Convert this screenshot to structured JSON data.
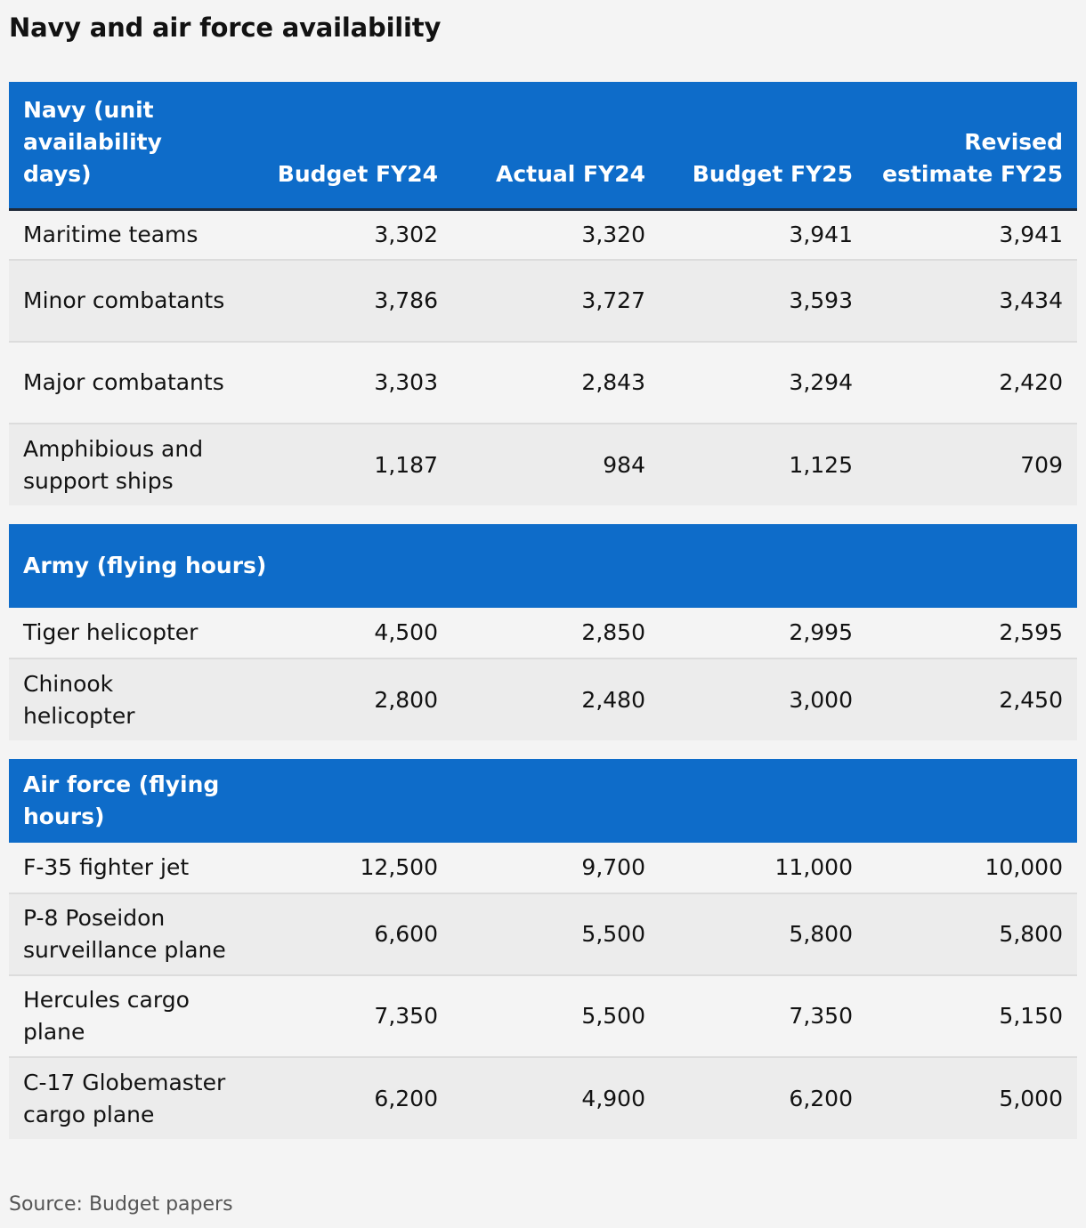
{
  "title": "Navy and air force availability",
  "columns": [
    "Navy (unit availability days)",
    "Budget FY24",
    "Actual FY24",
    "Budget FY25",
    "Revised estimate FY25"
  ],
  "sections": [
    {
      "heading": "Navy (unit availability days)",
      "rows": [
        {
          "label": "Maritime teams",
          "values": [
            "3,302",
            "3,320",
            "3,941",
            "3,941"
          ]
        },
        {
          "label": "Minor combatants",
          "values": [
            "3,786",
            "3,727",
            "3,593",
            "3,434"
          ]
        },
        {
          "label": "Major combatants",
          "values": [
            "3,303",
            "2,843",
            "3,294",
            "2,420"
          ]
        },
        {
          "label": "Amphibious and support ships",
          "values": [
            "1,187",
            "984",
            "1,125",
            "709"
          ]
        }
      ]
    },
    {
      "heading": "Army (flying hours)",
      "rows": [
        {
          "label": "Tiger helicopter",
          "values": [
            "4,500",
            "2,850",
            "2,995",
            "2,595"
          ]
        },
        {
          "label": "Chinook helicopter",
          "values": [
            "2,800",
            "2,480",
            "3,000",
            "2,450"
          ]
        }
      ]
    },
    {
      "heading": "Air force (flying hours)",
      "rows": [
        {
          "label": "F-35 fighter jet",
          "values": [
            "12,500",
            "9,700",
            "11,000",
            "10,000"
          ]
        },
        {
          "label": "P-8 Poseidon surveillance plane",
          "values": [
            "6,600",
            "5,500",
            "5,800",
            "5,800"
          ]
        },
        {
          "label": "Hercules cargo plane",
          "values": [
            "7,350",
            "5,500",
            "7,350",
            "5,150"
          ]
        },
        {
          "label": "C-17 Globemaster cargo plane",
          "values": [
            "6,200",
            "4,900",
            "6,200",
            "5,000"
          ]
        }
      ]
    }
  ],
  "source": "Source: Budget papers",
  "colors": {
    "header_bg": "#0e6cc9",
    "header_text": "#ffffff",
    "row_alt_bg": "#ececec",
    "page_bg": "#f4f4f4"
  }
}
